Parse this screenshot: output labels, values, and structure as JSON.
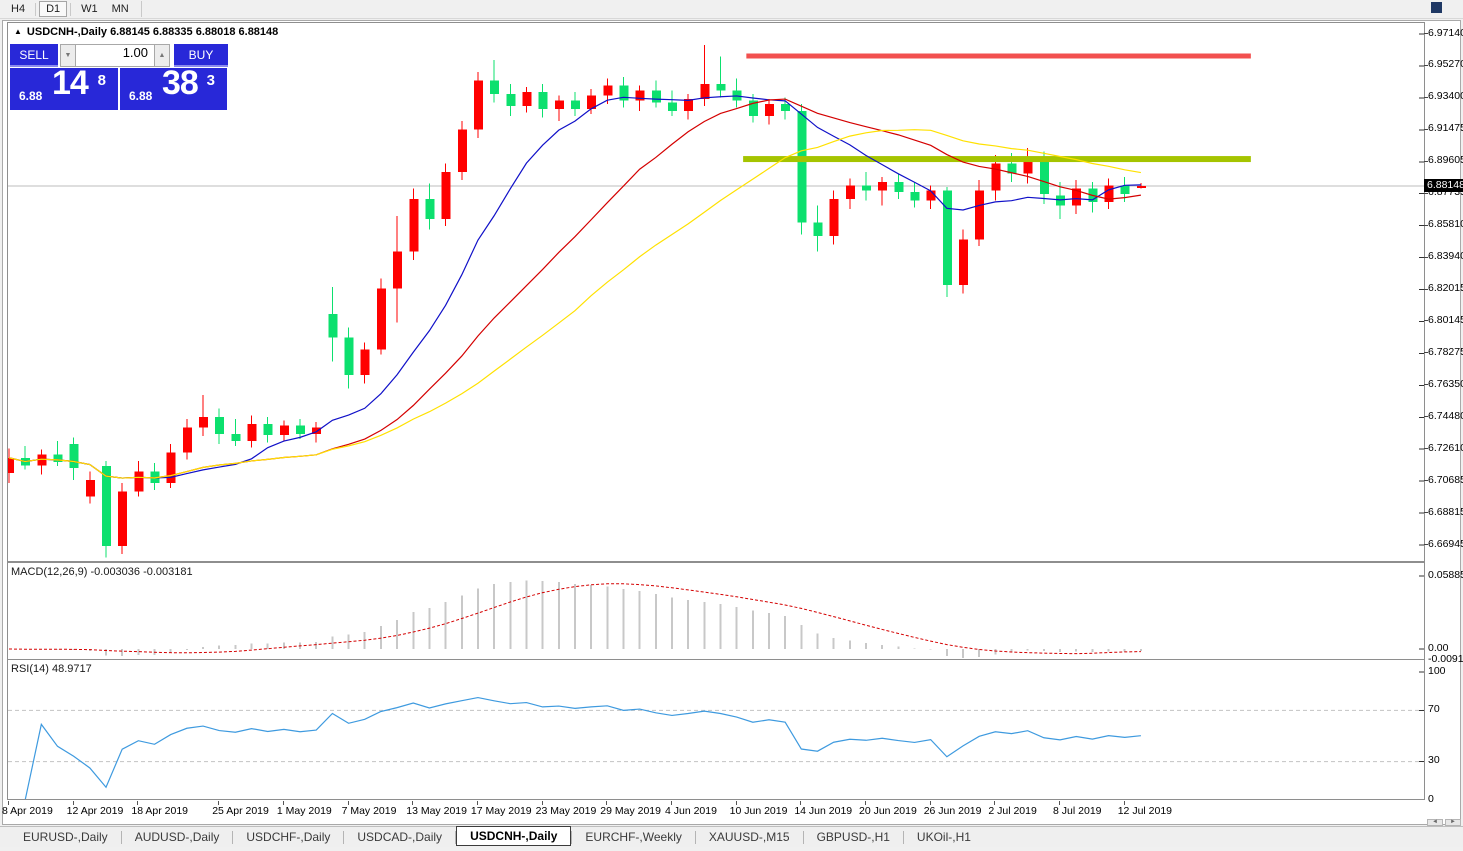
{
  "toolbar": {
    "timeframes": [
      {
        "label": "H4",
        "active": false
      },
      {
        "label": "D1",
        "active": true
      },
      {
        "label": "W1",
        "active": false
      },
      {
        "label": "MN",
        "active": false
      }
    ]
  },
  "chart_header": {
    "collapse_icon": "▲",
    "title": "USDCNH-,Daily",
    "ohlc_text": "6.88145 6.88335 6.88018 6.88148"
  },
  "trade_panel": {
    "sell_label": "SELL",
    "buy_label": "BUY",
    "volume": "1.00",
    "spin_down": "▼",
    "spin_up": "▲",
    "sell_price_small": "6.88",
    "sell_price_big": "14",
    "sell_price_sup": "8",
    "buy_price_small": "6.88",
    "buy_price_big": "38",
    "buy_price_sup": "3"
  },
  "price_axis": {
    "ticks": [
      "6.97140",
      "6.95270",
      "6.93400",
      "6.91475",
      "6.89605",
      "6.87735",
      "6.85810",
      "6.83940",
      "6.82015",
      "6.80145",
      "6.78275",
      "6.76350",
      "6.74480",
      "6.72610",
      "6.70685",
      "6.68815",
      "6.66945"
    ],
    "current": "6.88148"
  },
  "indicators": {
    "macd": {
      "label": "MACD(12,26,9)",
      "values": "-0.003036 -0.003181",
      "axis": [
        "0.058851",
        "0.00",
        "-0.009116"
      ]
    },
    "rsi": {
      "label": "RSI(14)",
      "value": "48.9717",
      "axis": [
        "100",
        "70",
        "30",
        "0"
      ]
    }
  },
  "scrollbar": {
    "left_arrow": "◄",
    "right_arrow": "►"
  },
  "tabs": {
    "active_index": 4,
    "items": [
      "EURUSD-,Daily",
      "AUDUSD-,Daily",
      "USDCHF-,Daily",
      "USDCAD-,Daily",
      "USDCNH-,Daily",
      "EURCHF-,Weekly",
      "XAUUSD-,M15",
      "GBPUSD-,H1",
      "UKOil-,H1"
    ]
  },
  "colors": {
    "bull": "#FF0000",
    "bear": "#0CE06E",
    "ma_fast": "#1010C8",
    "ma_mid": "#D40000",
    "ma_slow": "#FFE100",
    "macd_hist": "#C8C8C8",
    "macd_signal": "#D40000",
    "rsi": "#3E9ADF",
    "resistance": "#F2504F",
    "support": "#A5C400",
    "price_line": "#BCBCBC",
    "accent_blue": "#2828D8"
  },
  "chart_data": {
    "type": "candlestick",
    "symbol": "USDCNH-",
    "period": "Daily",
    "title": "USDCNH-,Daily",
    "current_price": 6.88148,
    "y_axis": {
      "top": 6.9714,
      "bottom": 6.66945
    },
    "x_labels": [
      {
        "index": 0,
        "label": "8 Apr 2019"
      },
      {
        "index": 4,
        "label": "12 Apr 2019"
      },
      {
        "index": 8,
        "label": "18 Apr 2019"
      },
      {
        "index": 13,
        "label": "25 Apr 2019"
      },
      {
        "index": 17,
        "label": "1 May 2019"
      },
      {
        "index": 21,
        "label": "7 May 2019"
      },
      {
        "index": 25,
        "label": "13 May 2019"
      },
      {
        "index": 29,
        "label": "17 May 2019"
      },
      {
        "index": 33,
        "label": "23 May 2019"
      },
      {
        "index": 37,
        "label": "29 May 2019"
      },
      {
        "index": 41,
        "label": "4 Jun 2019"
      },
      {
        "index": 45,
        "label": "10 Jun 2019"
      },
      {
        "index": 49,
        "label": "14 Jun 2019"
      },
      {
        "index": 53,
        "label": "20 Jun 2019"
      },
      {
        "index": 57,
        "label": "26 Jun 2019"
      },
      {
        "index": 61,
        "label": "2 Jul 2019"
      },
      {
        "index": 65,
        "label": "8 Jul 2019"
      },
      {
        "index": 69,
        "label": "12 Jul 2019"
      }
    ],
    "levels": [
      {
        "name": "resistance",
        "price": 6.9584,
        "from_index": 45.6,
        "to_index": 76.8,
        "thickness": 5,
        "color_key": "resistance"
      },
      {
        "name": "support",
        "price": 6.8975,
        "from_index": 45.4,
        "to_index": 76.8,
        "thickness": 6,
        "color_key": "support"
      }
    ],
    "overlays": [
      {
        "name": "ma-fast",
        "type": "sma",
        "period": 10,
        "color_key": "ma_fast"
      },
      {
        "name": "ma-mid",
        "type": "sma",
        "period": 20,
        "color_key": "ma_mid"
      },
      {
        "name": "ma-slow",
        "type": "sma",
        "period": 30,
        "color_key": "ma_slow"
      }
    ],
    "macd": {
      "fast": 12,
      "slow": 26,
      "signal": 9,
      "scale_top": 0.058851,
      "scale_bottom": -0.009116,
      "current": -0.003036,
      "current_signal": -0.003181
    },
    "rsi": {
      "period": 14,
      "levels": [
        70,
        30
      ],
      "current": 48.9717
    },
    "ohlc": [
      [
        "8 Apr",
        6.712,
        6.7265,
        6.706,
        6.721
      ],
      [
        "9 Apr",
        6.721,
        6.728,
        6.714,
        6.7165
      ],
      [
        "10 Apr",
        6.7165,
        6.726,
        6.711,
        6.723
      ],
      [
        "11 Apr",
        6.723,
        6.731,
        6.716,
        6.7185
      ],
      [
        "12 Apr",
        6.729,
        6.733,
        6.708,
        6.715
      ],
      [
        "15 Apr",
        6.698,
        6.713,
        6.694,
        6.708
      ],
      [
        "16 Apr",
        6.716,
        6.719,
        6.662,
        6.669
      ],
      [
        "17 Apr",
        6.669,
        6.706,
        6.664,
        6.701
      ],
      [
        "18 Apr",
        6.701,
        6.719,
        6.698,
        6.713
      ],
      [
        "19 Apr",
        6.713,
        6.718,
        6.702,
        6.706
      ],
      [
        "22 Apr",
        6.706,
        6.729,
        6.703,
        6.724
      ],
      [
        "23 Apr",
        6.724,
        6.744,
        6.72,
        6.739
      ],
      [
        "24 Apr",
        6.739,
        6.758,
        6.734,
        6.745
      ],
      [
        "25 Apr",
        6.745,
        6.75,
        6.729,
        6.735
      ],
      [
        "26 Apr",
        6.735,
        6.744,
        6.728,
        6.731
      ],
      [
        "29 Apr",
        6.731,
        6.746,
        6.727,
        6.741
      ],
      [
        "30 Apr",
        6.741,
        6.745,
        6.73,
        6.7345
      ],
      [
        "1 May",
        6.7345,
        6.743,
        6.731,
        6.74
      ],
      [
        "2 May",
        6.74,
        6.744,
        6.732,
        6.735
      ],
      [
        "3 May",
        6.735,
        6.742,
        6.73,
        6.739
      ],
      [
        "6 May",
        6.806,
        6.822,
        6.778,
        6.792
      ],
      [
        "7 May",
        6.792,
        6.798,
        6.762,
        6.77
      ],
      [
        "8 May",
        6.77,
        6.789,
        6.765,
        6.785
      ],
      [
        "9 May",
        6.785,
        6.827,
        6.782,
        6.821
      ],
      [
        "10 May",
        6.821,
        6.864,
        6.801,
        6.843
      ],
      [
        "13 May",
        6.843,
        6.88,
        6.838,
        6.874
      ],
      [
        "14 May",
        6.874,
        6.883,
        6.856,
        6.862
      ],
      [
        "15 May",
        6.862,
        6.895,
        6.858,
        6.89
      ],
      [
        "16 May",
        6.89,
        6.92,
        6.885,
        6.915
      ],
      [
        "17 May",
        6.915,
        6.949,
        6.91,
        6.944
      ],
      [
        "20 May",
        6.944,
        6.956,
        6.931,
        6.936
      ],
      [
        "21 May",
        6.936,
        6.942,
        6.923,
        6.929
      ],
      [
        "22 May",
        6.929,
        6.94,
        6.925,
        6.937
      ],
      [
        "23 May",
        6.937,
        6.942,
        6.922,
        6.927
      ],
      [
        "24 May",
        6.927,
        6.935,
        6.92,
        6.932
      ],
      [
        "27 May",
        6.932,
        6.937,
        6.923,
        6.927
      ],
      [
        "28 May",
        6.927,
        6.939,
        6.924,
        6.935
      ],
      [
        "29 May",
        6.935,
        6.945,
        6.93,
        6.941
      ],
      [
        "30 May",
        6.941,
        6.946,
        6.928,
        6.932
      ],
      [
        "31 May",
        6.932,
        6.941,
        6.926,
        6.938
      ],
      [
        "3 Jun",
        6.938,
        6.944,
        6.928,
        6.931
      ],
      [
        "4 Jun",
        6.931,
        6.938,
        6.923,
        6.926
      ],
      [
        "5 Jun",
        6.926,
        6.936,
        6.921,
        6.933
      ],
      [
        "6 Jun",
        6.933,
        6.965,
        6.929,
        6.942
      ],
      [
        "7 Jun",
        6.942,
        6.958,
        6.934,
        6.938
      ],
      [
        "10 Jun",
        6.938,
        6.945,
        6.928,
        6.932
      ],
      [
        "11 Jun",
        6.932,
        6.936,
        6.919,
        6.923
      ],
      [
        "12 Jun",
        6.923,
        6.933,
        6.918,
        6.93
      ],
      [
        "13 Jun",
        6.93,
        6.934,
        6.921,
        6.926
      ],
      [
        "14 Jun",
        6.926,
        6.93,
        6.853,
        6.86
      ],
      [
        "17 Jun",
        6.86,
        6.87,
        6.843,
        6.852
      ],
      [
        "18 Jun",
        6.852,
        6.879,
        6.847,
        6.874
      ],
      [
        "19 Jun",
        6.874,
        6.886,
        6.868,
        6.882
      ],
      [
        "20 Jun",
        6.882,
        6.89,
        6.873,
        6.879
      ],
      [
        "21 Jun",
        6.879,
        6.887,
        6.87,
        6.884
      ],
      [
        "24 Jun",
        6.884,
        6.889,
        6.874,
        6.878
      ],
      [
        "25 Jun",
        6.878,
        6.884,
        6.869,
        6.873
      ],
      [
        "26 Jun",
        6.873,
        6.882,
        6.868,
        6.879
      ],
      [
        "27 Jun",
        6.879,
        6.881,
        6.816,
        6.823
      ],
      [
        "28 Jun",
        6.823,
        6.856,
        6.818,
        6.85
      ],
      [
        "1 Jul",
        6.85,
        6.885,
        6.846,
        6.879
      ],
      [
        "2 Jul",
        6.879,
        6.9,
        6.873,
        6.895
      ],
      [
        "3 Jul",
        6.895,
        6.901,
        6.884,
        6.889
      ],
      [
        "4 Jul",
        6.889,
        6.904,
        6.883,
        6.899
      ],
      [
        "5 Jul",
        6.899,
        6.902,
        6.871,
        6.877
      ],
      [
        "8 Jul",
        6.876,
        6.884,
        6.862,
        6.87
      ],
      [
        "9 Jul",
        6.87,
        6.885,
        6.865,
        6.88
      ],
      [
        "10 Jul",
        6.88,
        6.884,
        6.866,
        6.872
      ],
      [
        "11 Jul",
        6.872,
        6.886,
        6.868,
        6.882
      ],
      [
        "12 Jul",
        6.882,
        6.887,
        6.872,
        6.877
      ],
      [
        "15 Jul",
        6.88145,
        6.88335,
        6.88018,
        6.88148
      ]
    ]
  }
}
